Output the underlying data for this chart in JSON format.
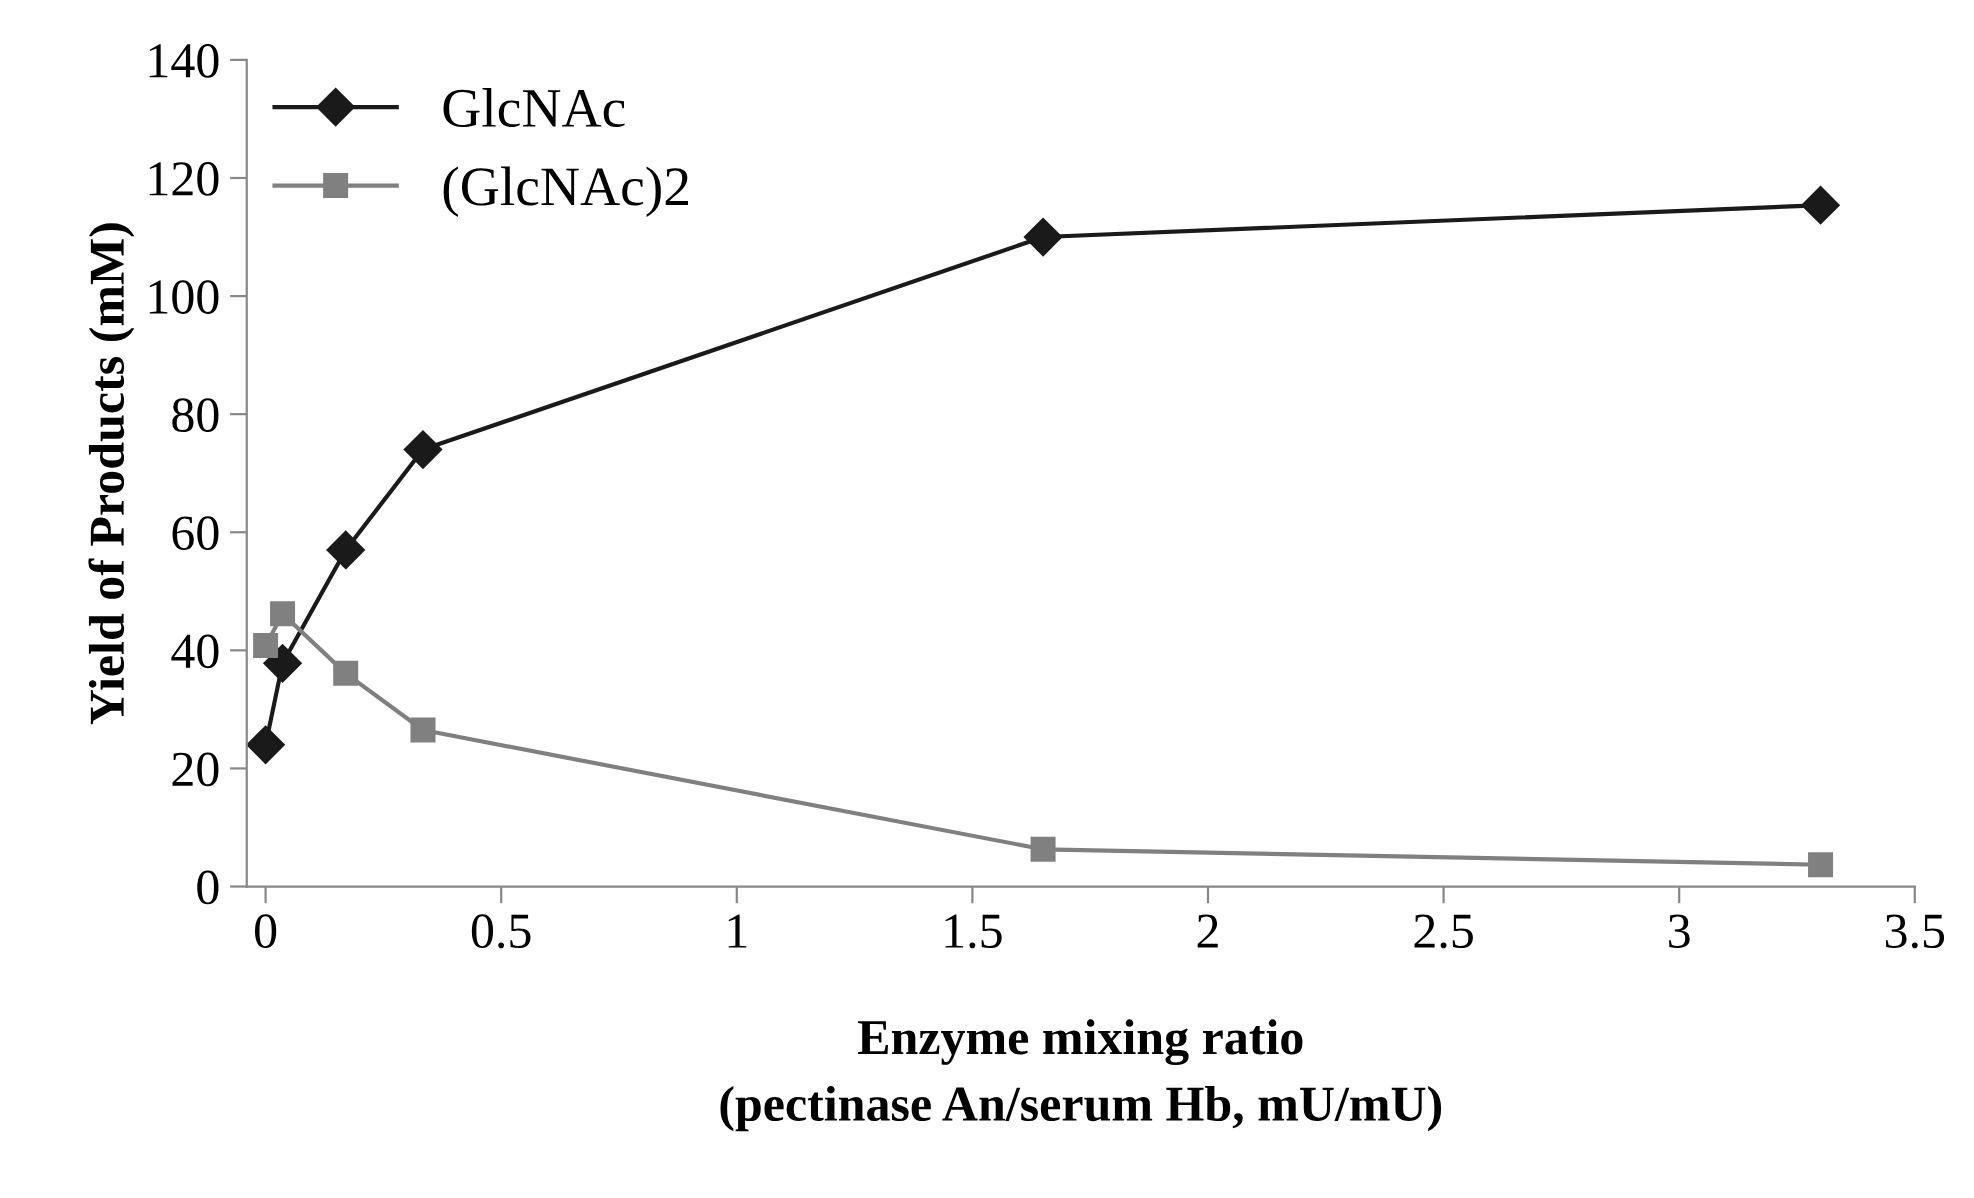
{
  "chart_data": {
    "type": "line",
    "xlabel": "Enzyme mixing ratio\n(pectinase An/serum Hb, mU/mU)",
    "ylabel": "Yield of Products (mM)",
    "series": [
      {
        "name": "GlcNAc",
        "color": "#1a1a1a",
        "marker": "diamond",
        "x": [
          0,
          0.036,
          0.17,
          0.334,
          1.65,
          3.3
        ],
        "values": [
          24,
          37.8,
          57,
          74,
          110,
          115.4
        ]
      },
      {
        "name": "(GlcNAc)2",
        "color": "#808080",
        "marker": "square",
        "x": [
          0,
          0.036,
          0.17,
          0.334,
          1.65,
          3.3
        ],
        "values": [
          40.8,
          46.2,
          36.1,
          26.5,
          6.3,
          3.7
        ]
      }
    ],
    "xlim": [
      -0.04,
      3.5
    ],
    "xticks": [
      0,
      0.5,
      1,
      1.5,
      2,
      2.5,
      3,
      3.5
    ],
    "ylim": [
      0,
      140
    ],
    "yticks": [
      0,
      20,
      40,
      60,
      80,
      100,
      120,
      140
    ],
    "grid": false,
    "legend": "top left",
    "line_style": "solid"
  }
}
